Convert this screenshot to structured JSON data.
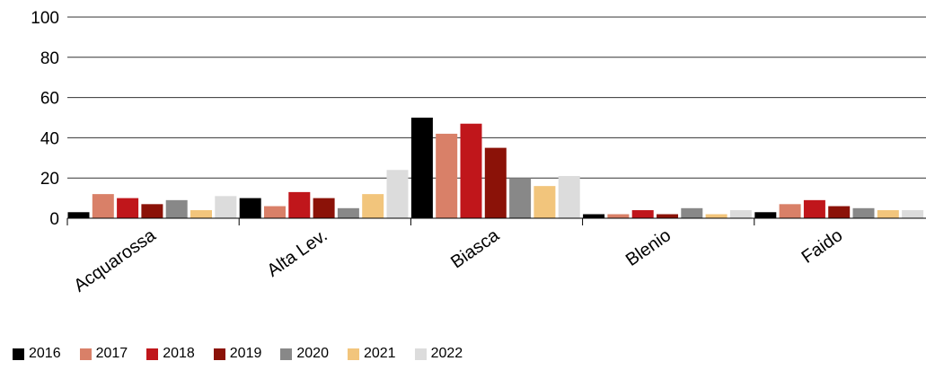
{
  "chart_data": {
    "type": "bar",
    "categories": [
      "Acquarossa",
      "Alta Lev.",
      "Biasca",
      "Blenio",
      "Faido"
    ],
    "series": [
      {
        "name": "2016",
        "color": "#000000",
        "values": [
          3,
          10,
          50,
          2,
          3
        ]
      },
      {
        "name": "2017",
        "color": "#d98068",
        "values": [
          12,
          6,
          42,
          2,
          7
        ]
      },
      {
        "name": "2018",
        "color": "#c0161b",
        "values": [
          10,
          13,
          47,
          4,
          9
        ]
      },
      {
        "name": "2019",
        "color": "#8b1208",
        "values": [
          7,
          10,
          35,
          2,
          6
        ]
      },
      {
        "name": "2020",
        "color": "#888888",
        "values": [
          9,
          5,
          20,
          5,
          5
        ]
      },
      {
        "name": "2021",
        "color": "#f2c57c",
        "values": [
          4,
          12,
          16,
          2,
          4
        ]
      },
      {
        "name": "2022",
        "color": "#dcdcdc",
        "values": [
          11,
          24,
          21,
          4,
          4
        ]
      }
    ],
    "yticks": [
      "0",
      "20",
      "40",
      "60",
      "80",
      "100"
    ],
    "ylim": [
      0,
      100
    ],
    "grid": true,
    "legend_position": "bottom-left"
  }
}
